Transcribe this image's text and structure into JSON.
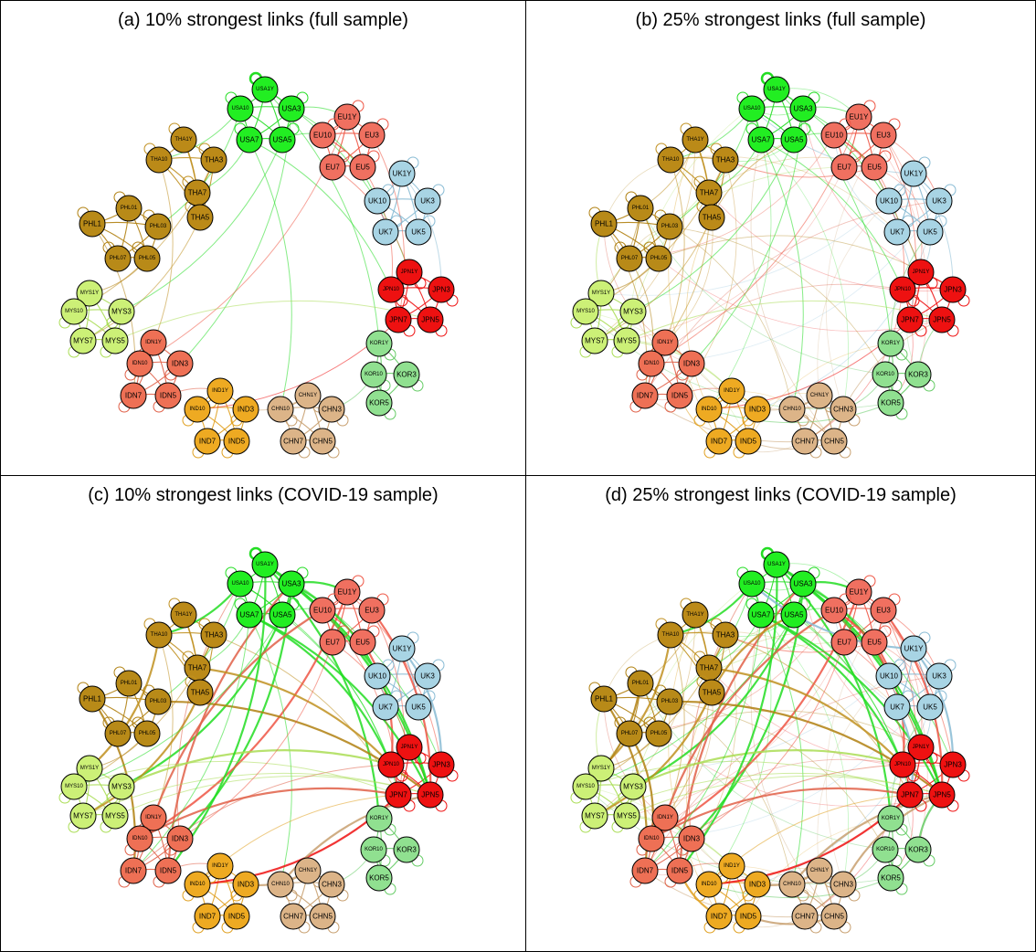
{
  "panels": [
    {
      "id": "a",
      "title": "(a) 10% strongest links (full sample)",
      "sample": "full",
      "threshold": "10%"
    },
    {
      "id": "b",
      "title": "(b) 25% strongest links (full sample)",
      "sample": "full",
      "threshold": "25%"
    },
    {
      "id": "c",
      "title": "(c) 10% strongest links (COVID-19 sample)",
      "sample": "covid",
      "threshold": "10%"
    },
    {
      "id": "d",
      "title": "(d) 25% strongest links (COVID-19 sample)",
      "sample": "covid",
      "threshold": "25%"
    }
  ],
  "countries": {
    "USA": {
      "color": "#22ee22",
      "edge": "#22dd22",
      "nodes": [
        "USA1Y",
        "USA10",
        "USA3",
        "USA7",
        "USA5"
      ]
    },
    "EU": {
      "color": "#f07060",
      "edge": "#ee5544",
      "nodes": [
        "EU1Y",
        "EU10",
        "EU3",
        "EU7",
        "EU5"
      ]
    },
    "UK": {
      "color": "#a8d4e4",
      "edge": "#88bbd4",
      "nodes": [
        "UK1Y",
        "UK10",
        "UK3",
        "UK7",
        "UK5"
      ]
    },
    "JPN": {
      "color": "#ee1111",
      "edge": "#ee1111",
      "nodes": [
        "JPN1Y",
        "JPN10",
        "JPN3",
        "JPN7",
        "JPN5"
      ]
    },
    "KOR": {
      "color": "#90e090",
      "edge": "#66cc66",
      "nodes": [
        "KOR1Y",
        "KOR10",
        "KOR3",
        "KOR5"
      ]
    },
    "CHN": {
      "color": "#dcb488",
      "edge": "#c8a070",
      "nodes": [
        "CHN1Y",
        "CHN10",
        "CHN3",
        "CHN7",
        "CHN5"
      ]
    },
    "IND": {
      "color": "#eeaa22",
      "edge": "#e0a020",
      "nodes": [
        "IND1Y",
        "IND10",
        "IND3",
        "IND7",
        "IND5"
      ]
    },
    "IDN": {
      "color": "#ee7055",
      "edge": "#e06048",
      "nodes": [
        "IDN1Y",
        "IDN10",
        "IDN3",
        "IDN7",
        "IDN5"
      ]
    },
    "MYS": {
      "color": "#ccf077",
      "edge": "#aadd55",
      "nodes": [
        "MYS1Y",
        "MYS10",
        "MYS3",
        "MYS7",
        "MYS5"
      ]
    },
    "PHL": {
      "color": "#b88a18",
      "edge": "#b08010",
      "nodes": [
        "PHL01",
        "PHL1",
        "PHL03",
        "PHL07",
        "PHL05"
      ]
    },
    "THA": {
      "color": "#bb8a18",
      "edge": "#c09020",
      "nodes": [
        "THA1Y",
        "THA10",
        "THA3",
        "THA7",
        "THA5"
      ]
    }
  }
}
